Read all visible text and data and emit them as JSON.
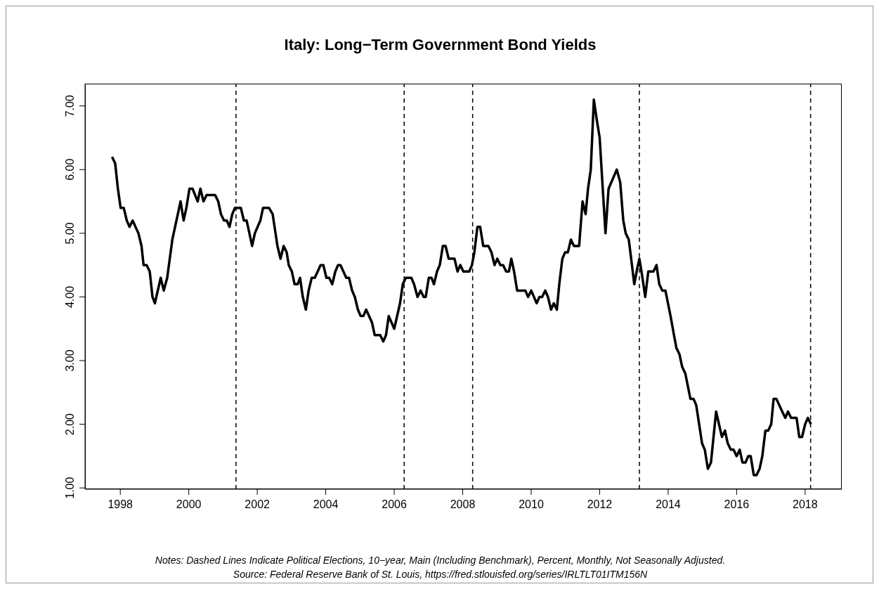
{
  "chart_data": {
    "type": "line",
    "title": "Italy: Long−Term Government Bond Yields",
    "annotations": [
      "Notes: Dashed Lines Indicate Political Elections, 10−year, Main (Including Benchmark), Percent, Monthly, Not Seasonally Adjusted.",
      "Source: Federal Reserve Bank of St. Louis, https://fred.stlouisfed.org/series/IRLTLT01ITM156N"
    ],
    "x": [
      1997.76,
      1997.85,
      1997.93,
      1998.01,
      1998.1,
      1998.19,
      1998.27,
      1998.36,
      1998.53,
      1998.62,
      1998.68,
      1998.77,
      1998.86,
      1998.94,
      1999.01,
      1999.18,
      1999.27,
      1999.37,
      1999.52,
      1999.76,
      1999.85,
      1999.93,
      2000.02,
      2000.11,
      2000.26,
      2000.34,
      2000.43,
      2000.52,
      2000.77,
      2000.86,
      2000.94,
      2001.03,
      2001.11,
      2001.19,
      2001.27,
      2001.35,
      2001.52,
      2001.61,
      2001.69,
      2001.85,
      2001.93,
      2002.09,
      2002.17,
      2002.34,
      2002.45,
      2002.59,
      2002.68,
      2002.77,
      2002.86,
      2002.92,
      2003.01,
      2003.09,
      2003.18,
      2003.25,
      2003.33,
      2003.42,
      2003.5,
      2003.59,
      2003.68,
      2003.85,
      2003.93,
      2004.02,
      2004.1,
      2004.19,
      2004.28,
      2004.36,
      2004.43,
      2004.6,
      2004.68,
      2004.77,
      2004.85,
      2004.94,
      2005.02,
      2005.1,
      2005.18,
      2005.35,
      2005.43,
      2005.59,
      2005.68,
      2005.76,
      2005.84,
      2006.0,
      2006.17,
      2006.25,
      2006.34,
      2006.5,
      2006.58,
      2006.68,
      2006.77,
      2006.86,
      2006.92,
      2007.01,
      2007.09,
      2007.16,
      2007.25,
      2007.33,
      2007.42,
      2007.5,
      2007.59,
      2007.76,
      2007.85,
      2007.93,
      2008.02,
      2008.19,
      2008.27,
      2008.34,
      2008.43,
      2008.51,
      2008.6,
      2008.75,
      2008.84,
      2008.93,
      2009.01,
      2009.1,
      2009.18,
      2009.27,
      2009.35,
      2009.42,
      2009.5,
      2009.59,
      2009.83,
      2009.91,
      2010.0,
      2010.16,
      2010.24,
      2010.32,
      2010.41,
      2010.49,
      2010.58,
      2010.66,
      2010.75,
      2010.82,
      2010.91,
      2010.99,
      2011.07,
      2011.16,
      2011.25,
      2011.4,
      2011.5,
      2011.59,
      2011.66,
      2011.74,
      2011.83,
      2011.91,
      2012.0,
      2012.09,
      2012.17,
      2012.26,
      2012.34,
      2012.5,
      2012.6,
      2012.69,
      2012.76,
      2012.85,
      2012.92,
      2013.01,
      2013.08,
      2013.16,
      2013.25,
      2013.33,
      2013.42,
      2013.57,
      2013.66,
      2013.74,
      2013.83,
      2013.92,
      2014.07,
      2014.17,
      2014.24,
      2014.33,
      2014.41,
      2014.5,
      2014.65,
      2014.74,
      2014.82,
      2014.99,
      2015.07,
      2015.16,
      2015.25,
      2015.4,
      2015.57,
      2015.66,
      2015.74,
      2015.83,
      2015.91,
      2016.0,
      2016.09,
      2016.17,
      2016.26,
      2016.34,
      2016.41,
      2016.5,
      2016.58,
      2016.67,
      2016.75,
      2016.84,
      2016.92,
      2017.01,
      2017.08,
      2017.16,
      2017.33,
      2017.42,
      2017.5,
      2017.59,
      2017.75,
      2017.83,
      2017.91,
      2018.0,
      2018.08,
      2018.17
    ],
    "series": [
      {
        "color": "#000000",
        "values": [
          6.2,
          6.1,
          5.7,
          5.4,
          5.4,
          5.2,
          5.1,
          5.2,
          5.0,
          4.8,
          4.5,
          4.5,
          4.4,
          4.0,
          3.9,
          4.3,
          4.1,
          4.3,
          4.9,
          5.5,
          5.2,
          5.4,
          5.7,
          5.7,
          5.5,
          5.7,
          5.5,
          5.6,
          5.6,
          5.5,
          5.3,
          5.2,
          5.2,
          5.1,
          5.3,
          5.4,
          5.4,
          5.2,
          5.2,
          4.8,
          5.0,
          5.2,
          5.4,
          5.4,
          5.3,
          4.8,
          4.6,
          4.8,
          4.7,
          4.5,
          4.4,
          4.2,
          4.2,
          4.3,
          4.0,
          3.8,
          4.1,
          4.3,
          4.3,
          4.5,
          4.5,
          4.3,
          4.3,
          4.2,
          4.4,
          4.5,
          4.5,
          4.3,
          4.3,
          4.1,
          4.0,
          3.8,
          3.7,
          3.7,
          3.8,
          3.6,
          3.4,
          3.4,
          3.3,
          3.4,
          3.7,
          3.5,
          3.9,
          4.2,
          4.3,
          4.3,
          4.2,
          4.0,
          4.1,
          4.0,
          4.0,
          4.3,
          4.3,
          4.2,
          4.4,
          4.5,
          4.8,
          4.8,
          4.6,
          4.6,
          4.4,
          4.5,
          4.4,
          4.4,
          4.5,
          4.7,
          5.1,
          5.1,
          4.8,
          4.8,
          4.7,
          4.5,
          4.6,
          4.5,
          4.5,
          4.4,
          4.4,
          4.6,
          4.4,
          4.1,
          4.1,
          4.0,
          4.1,
          3.9,
          4.0,
          4.0,
          4.1,
          4.0,
          3.8,
          3.9,
          3.8,
          4.2,
          4.6,
          4.7,
          4.7,
          4.9,
          4.8,
          4.8,
          5.5,
          5.3,
          5.7,
          6.0,
          7.1,
          6.8,
          6.5,
          5.7,
          5.0,
          5.7,
          5.8,
          6.0,
          5.8,
          5.2,
          5.0,
          4.9,
          4.6,
          4.2,
          4.4,
          4.6,
          4.3,
          4.0,
          4.4,
          4.4,
          4.5,
          4.2,
          4.1,
          4.1,
          3.7,
          3.4,
          3.2,
          3.1,
          2.9,
          2.8,
          2.4,
          2.4,
          2.3,
          1.7,
          1.6,
          1.3,
          1.4,
          2.2,
          1.8,
          1.9,
          1.7,
          1.6,
          1.6,
          1.5,
          1.6,
          1.4,
          1.4,
          1.5,
          1.5,
          1.2,
          1.2,
          1.3,
          1.5,
          1.9,
          1.9,
          2.0,
          2.4,
          2.4,
          2.2,
          2.1,
          2.2,
          2.1,
          2.1,
          1.8,
          1.8,
          2.0,
          2.1,
          2.0
        ]
      }
    ],
    "xlim": [
      1996.97,
      2019.07
    ],
    "xticks": [
      1998,
      2000,
      2002,
      2004,
      2006,
      2008,
      2010,
      2012,
      2014,
      2016,
      2018
    ],
    "ylim": [
      0.98,
      7.35
    ],
    "yticks": [
      {
        "value": 1,
        "label": "1.00"
      },
      {
        "value": 2,
        "label": "2.00"
      },
      {
        "value": 3,
        "label": "3.00"
      },
      {
        "value": 4,
        "label": "4.00"
      },
      {
        "value": 5,
        "label": "5.00"
      },
      {
        "value": 6,
        "label": "6.00"
      },
      {
        "value": 7,
        "label": "7.00"
      }
    ],
    "ref_lines": [
      {
        "axis": "x",
        "value": 2001.38,
        "color": "#000000",
        "line_style": "dashed"
      },
      {
        "axis": "x",
        "value": 2006.29,
        "color": "#000000",
        "line_style": "dashed"
      },
      {
        "axis": "x",
        "value": 2008.29,
        "color": "#000000",
        "line_style": "dashed"
      },
      {
        "axis": "x",
        "value": 2013.16,
        "color": "#000000",
        "line_style": "dashed"
      },
      {
        "axis": "x",
        "value": 2018.16,
        "color": "#000000",
        "line_style": "dashed"
      }
    ],
    "marker": "none",
    "line_style": "solid"
  }
}
